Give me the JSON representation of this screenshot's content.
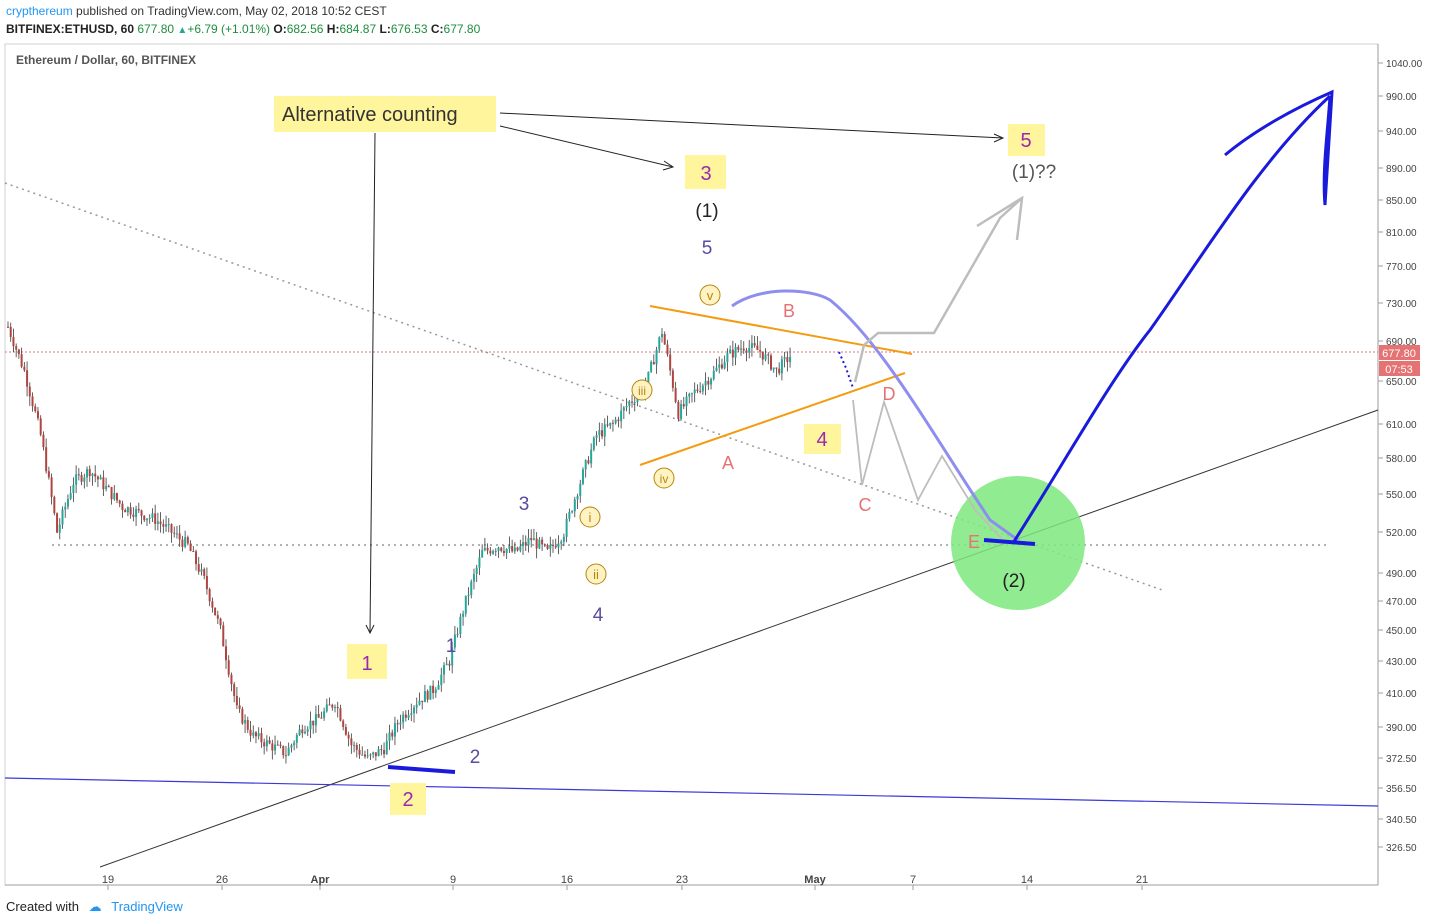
{
  "header": {
    "author": "crypthereum",
    "published": "published on TradingView.com, May 02, 2018 10:52 CEST",
    "symbol_interval": "BITFINEX:ETHUSD, 60",
    "last": "677.80",
    "change": "+6.79 (+1.01%)",
    "open_label": "O:",
    "open": "682.56",
    "high_label": "H:",
    "high": "684.87",
    "low_label": "L:",
    "low": "676.53",
    "close_label": "C:",
    "close": "677.80"
  },
  "footer": {
    "created_with": "Created with",
    "brand": "TradingView"
  },
  "colors": {
    "accent": "#2196f3",
    "green": "#1e8e3e",
    "wave_purple": "#5b4a9e",
    "wave_magenta": "#9c27b0",
    "orange": "#f39c12",
    "pink": "#e57373",
    "blue_path": "#1a1adc",
    "light_blue_path": "#8e8ef0",
    "highlight": "#fff59d"
  },
  "chart_data": {
    "type": "candlestick",
    "title": "Ethereum / Dollar, 60, BITFINEX",
    "price_ticks": [
      "1040.00",
      "990.00",
      "940.00",
      "890.00",
      "850.00",
      "810.00",
      "770.00",
      "730.00",
      "690.00",
      "650.00",
      "610.00",
      "580.00",
      "550.00",
      "520.00",
      "490.00",
      "470.00",
      "450.00",
      "430.00",
      "410.00",
      "390.00",
      "372.50",
      "356.50",
      "340.50",
      "326.50"
    ],
    "time_ticks": [
      "19",
      "26",
      "Apr",
      "9",
      "16",
      "23",
      "May",
      "7",
      "14",
      "21"
    ],
    "current_price_label": "677.80",
    "countdown_label": "07:53",
    "price_path": [
      {
        "d": "Mar 15",
        "p": 705
      },
      {
        "d": "Mar 16",
        "p": 660
      },
      {
        "d": "Mar 17",
        "p": 600
      },
      {
        "d": "Mar 18",
        "p": 520
      },
      {
        "d": "Mar 19",
        "p": 560
      },
      {
        "d": "Mar 20",
        "p": 570
      },
      {
        "d": "Mar 21",
        "p": 555
      },
      {
        "d": "Mar 22",
        "p": 540
      },
      {
        "d": "Mar 23",
        "p": 535
      },
      {
        "d": "Mar 24",
        "p": 530
      },
      {
        "d": "Mar 25",
        "p": 520
      },
      {
        "d": "Mar 26",
        "p": 510
      },
      {
        "d": "Mar 27",
        "p": 485
      },
      {
        "d": "Mar 28",
        "p": 450
      },
      {
        "d": "Mar 29",
        "p": 400
      },
      {
        "d": "Mar 30",
        "p": 385
      },
      {
        "d": "Apr 1",
        "p": 375
      },
      {
        "d": "Apr 2",
        "p": 390
      },
      {
        "d": "Apr 3",
        "p": 395
      },
      {
        "d": "Apr 4",
        "p": 405
      },
      {
        "d": "Apr 5",
        "p": 380
      },
      {
        "d": "Apr 6",
        "p": 372
      },
      {
        "d": "Apr 7",
        "p": 378
      },
      {
        "d": "Apr 8",
        "p": 395
      },
      {
        "d": "Apr 9",
        "p": 405
      },
      {
        "d": "Apr 10",
        "p": 412
      },
      {
        "d": "Apr 11",
        "p": 430
      },
      {
        "d": "Apr 12",
        "p": 470
      },
      {
        "d": "Apr 13",
        "p": 505
      },
      {
        "d": "Apr 14",
        "p": 510
      },
      {
        "d": "Apr 15",
        "p": 505
      },
      {
        "d": "Apr 16",
        "p": 515
      },
      {
        "d": "Apr 17",
        "p": 505
      },
      {
        "d": "Apr 18",
        "p": 520
      },
      {
        "d": "Apr 19",
        "p": 560
      },
      {
        "d": "Apr 20",
        "p": 600
      },
      {
        "d": "Apr 21",
        "p": 610
      },
      {
        "d": "Apr 22",
        "p": 630
      },
      {
        "d": "Apr 23",
        "p": 645
      },
      {
        "d": "Apr 24",
        "p": 700
      },
      {
        "d": "Apr 25",
        "p": 620
      },
      {
        "d": "Apr 26",
        "p": 640
      },
      {
        "d": "Apr 27",
        "p": 655
      },
      {
        "d": "Apr 28",
        "p": 675
      },
      {
        "d": "Apr 29",
        "p": 685
      },
      {
        "d": "Apr 30",
        "p": 680
      },
      {
        "d": "May 1",
        "p": 660
      },
      {
        "d": "May 2",
        "p": 678
      }
    ],
    "annotations": {
      "alternative": "Alternative counting",
      "box_3": "3",
      "box_5": "5",
      "box_1": "1",
      "box_2": "2",
      "box_4": "4",
      "wave_1_paren": "(1)",
      "wave_1_q": "(1)??",
      "wave_2_paren": "(2)",
      "w5": "5",
      "w3": "3",
      "w4": "4",
      "w1": "1",
      "w2": "2",
      "r_i": "i",
      "r_ii": "ii",
      "r_iii": "iii",
      "r_iv": "iv",
      "r_v": "v",
      "A": "A",
      "B": "B",
      "C": "C",
      "D": "D",
      "E": "E"
    }
  }
}
